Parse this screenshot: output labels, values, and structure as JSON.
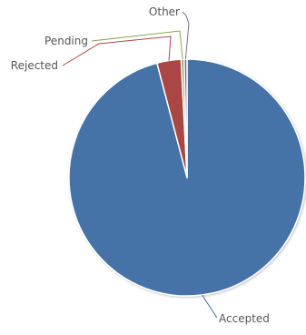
{
  "chart_data": {
    "type": "pie",
    "title": "",
    "slices": [
      {
        "label": "Accepted",
        "value": 95.9,
        "color": "#4572A7"
      },
      {
        "label": "Rejected",
        "value": 3.3,
        "color": "#AA4643"
      },
      {
        "label": "Pending",
        "value": 0.4,
        "color": "#89A54E"
      },
      {
        "label": "Other",
        "value": 0.4,
        "color": "#80699B"
      }
    ],
    "legend": "none",
    "data_labels": "outside-with-connectors"
  }
}
